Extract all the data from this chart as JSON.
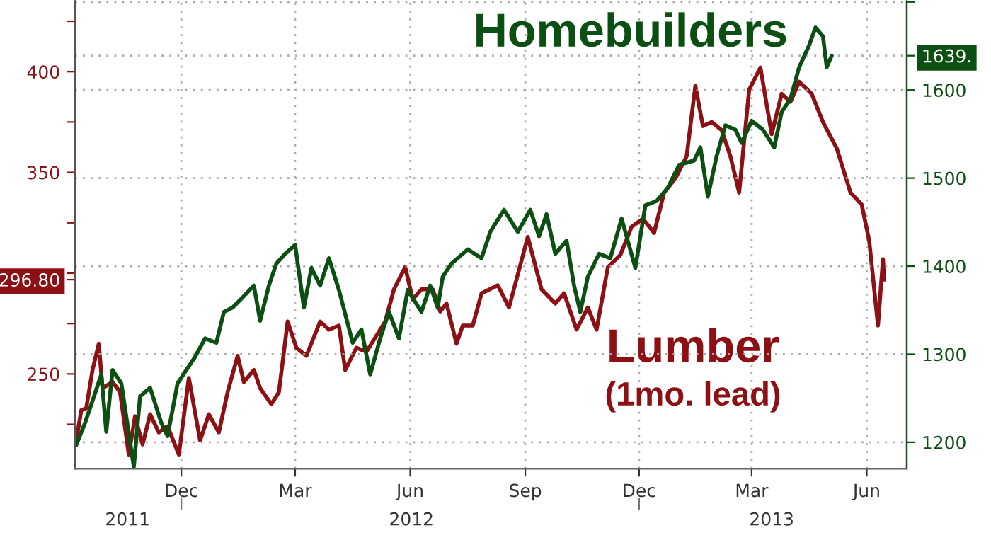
{
  "chart_data": {
    "type": "line",
    "annotations": [
      "(1mo. lead)"
    ],
    "xlim": [
      "2011-09-07",
      "2013-07-03"
    ],
    "xticks": [
      {
        "value": "2011-12-01",
        "label": "Dec"
      },
      {
        "value": "2012-03-01",
        "label": "Mar"
      },
      {
        "value": "2012-06-01",
        "label": "Jun"
      },
      {
        "value": "2012-09-01",
        "label": "Sep"
      },
      {
        "value": "2012-12-01",
        "label": "Dec"
      },
      {
        "value": "2013-03-01",
        "label": "Mar"
      },
      {
        "value": "2013-06-01",
        "label": "Jun"
      }
    ],
    "x2lim": [
      "2011-09-07",
      "2013-07-03"
    ],
    "x2ticks": [
      {
        "value": "2011-10-19",
        "label": "2011"
      },
      {
        "value": "2011-12-01",
        "label": null
      },
      {
        "value": "2012-06-02",
        "label": "2012"
      },
      {
        "value": "2012-12-01",
        "label": null
      },
      {
        "value": "2013-03-17",
        "label": "2013"
      }
    ],
    "ylim": [
      203,
      435
    ],
    "yticks": [
      {
        "value": 225,
        "label": null
      },
      250,
      {
        "value": 275,
        "label": null
      },
      {
        "value": 300,
        "label": null
      },
      {
        "value": 296.8,
        "label": "296.80"
      },
      {
        "value": 325,
        "label": null
      },
      350,
      {
        "value": 375,
        "label": null
      },
      400,
      {
        "value": 425,
        "label": null
      }
    ],
    "y2lim": [
      1170,
      1701
    ],
    "y2ticks": [
      1200,
      1300,
      1400,
      1500,
      1600,
      {
        "value": 1639,
        "label": "1639."
      },
      {
        "value": 1700,
        "label": null
      }
    ],
    "grid": true,
    "series": [
      {
        "name": "Lumber",
        "color": "#8c1014",
        "axis": "y",
        "x": [
          "2011-09-08",
          "2011-09-12",
          "2011-09-16",
          "2011-09-21",
          "2011-09-26",
          "2011-09-29",
          "2011-10-07",
          "2011-10-13",
          "2011-10-20",
          "2011-10-25",
          "2011-10-31",
          "2011-11-06",
          "2011-11-13",
          "2011-11-20",
          "2011-11-29",
          "2011-12-07",
          "2011-12-16",
          "2011-12-23",
          "2011-12-31",
          "2012-01-07",
          "2012-01-15",
          "2012-01-20",
          "2012-01-28",
          "2012-02-02",
          "2012-02-11",
          "2012-02-17",
          "2012-02-24",
          "2012-03-02",
          "2012-03-10",
          "2012-03-21",
          "2012-03-28",
          "2012-04-05",
          "2012-04-10",
          "2012-04-19",
          "2012-04-27",
          "2012-05-04",
          "2012-05-12",
          "2012-05-19",
          "2012-05-28",
          "2012-06-03",
          "2012-06-10",
          "2012-06-19",
          "2012-06-25",
          "2012-06-30",
          "2012-07-08",
          "2012-07-13",
          "2012-07-21",
          "2012-07-28",
          "2012-08-10",
          "2012-08-19",
          "2012-09-03",
          "2012-09-14",
          "2012-09-25",
          "2012-10-02",
          "2012-10-12",
          "2012-10-21",
          "2012-10-28",
          "2012-11-06",
          "2012-11-16",
          "2012-11-25",
          "2012-12-04",
          "2012-12-13",
          "2012-12-21",
          "2012-12-30",
          "2013-01-08",
          "2013-01-15",
          "2013-01-21",
          "2013-01-28",
          "2013-02-05",
          "2013-02-12",
          "2013-02-19",
          "2013-02-27",
          "2013-03-08",
          "2013-03-17",
          "2013-03-25",
          "2013-04-01",
          "2013-04-08",
          "2013-04-18",
          "2013-04-27",
          "2013-05-08",
          "2013-05-19",
          "2013-05-28",
          "2013-06-03",
          "2013-06-10",
          "2013-06-14",
          "2013-06-15"
        ],
        "values": [
          217,
          232,
          233,
          252,
          265,
          243,
          246,
          241,
          210,
          229,
          215,
          230,
          221,
          224,
          210,
          248,
          217,
          230,
          221,
          241,
          259,
          246,
          252,
          243,
          235,
          241,
          276,
          263,
          259,
          276,
          272,
          274,
          252,
          263,
          261,
          268,
          276,
          292,
          303,
          287,
          292,
          292,
          281,
          285,
          265,
          274,
          274,
          290,
          294,
          283,
          318,
          292,
          285,
          290,
          272,
          283,
          272,
          303,
          309,
          323,
          327,
          320,
          340,
          347,
          358,
          393,
          373,
          375,
          371,
          358,
          340,
          391,
          402,
          369,
          389,
          385,
          395,
          389,
          375,
          362,
          340,
          334,
          316,
          274,
          307,
          296.8
        ]
      },
      {
        "name": "Homebuilders",
        "color": "#0b4f12",
        "axis": "y2",
        "x": [
          "2011-09-08",
          "2011-09-15",
          "2011-09-21",
          "2011-09-28",
          "2011-10-02",
          "2011-10-07",
          "2011-10-14",
          "2011-10-24",
          "2011-10-29",
          "2011-11-06",
          "2011-11-15",
          "2011-11-20",
          "2011-11-28",
          "2011-12-05",
          "2011-12-12",
          "2011-12-20",
          "2011-12-29",
          "2012-01-04",
          "2012-01-11",
          "2012-01-18",
          "2012-01-28",
          "2012-02-02",
          "2012-02-09",
          "2012-02-15",
          "2012-02-22",
          "2012-03-01",
          "2012-03-08",
          "2012-03-14",
          "2012-03-21",
          "2012-03-28",
          "2012-04-05",
          "2012-04-16",
          "2012-04-23",
          "2012-04-30",
          "2012-05-08",
          "2012-05-15",
          "2012-05-23",
          "2012-05-30",
          "2012-06-10",
          "2012-06-17",
          "2012-06-23",
          "2012-06-27",
          "2012-07-04",
          "2012-07-17",
          "2012-07-28",
          "2012-08-04",
          "2012-08-15",
          "2012-08-26",
          "2012-09-05",
          "2012-09-12",
          "2012-09-18",
          "2012-09-25",
          "2012-10-04",
          "2012-10-10",
          "2012-10-15",
          "2012-10-21",
          "2012-10-30",
          "2012-11-08",
          "2012-11-17",
          "2012-11-28",
          "2012-12-06",
          "2012-12-15",
          "2012-12-24",
          "2013-01-02",
          "2013-01-14",
          "2013-01-19",
          "2013-01-25",
          "2013-02-01",
          "2013-02-08",
          "2013-02-16",
          "2013-02-21",
          "2013-03-01",
          "2013-03-10",
          "2013-03-19",
          "2013-03-25",
          "2013-04-01",
          "2013-04-08",
          "2013-04-16",
          "2013-04-21",
          "2013-04-27",
          "2013-04-30",
          "2013-05-04"
        ],
        "values": [
          1197,
          1222,
          1247,
          1277,
          1212,
          1282,
          1267,
          1172,
          1252,
          1262,
          1222,
          1207,
          1267,
          1282,
          1297,
          1318,
          1313,
          1348,
          1353,
          1363,
          1378,
          1338,
          1378,
          1403,
          1414,
          1424,
          1353,
          1398,
          1378,
          1409,
          1373,
          1313,
          1328,
          1277,
          1318,
          1348,
          1318,
          1373,
          1348,
          1378,
          1353,
          1388,
          1403,
          1419,
          1409,
          1439,
          1464,
          1439,
          1464,
          1434,
          1459,
          1414,
          1429,
          1378,
          1348,
          1388,
          1414,
          1409,
          1454,
          1398,
          1469,
          1474,
          1489,
          1515,
          1520,
          1535,
          1479,
          1525,
          1560,
          1555,
          1540,
          1565,
          1555,
          1535,
          1575,
          1590,
          1626,
          1651,
          1671,
          1661,
          1626,
          1639
        ]
      }
    ]
  }
}
